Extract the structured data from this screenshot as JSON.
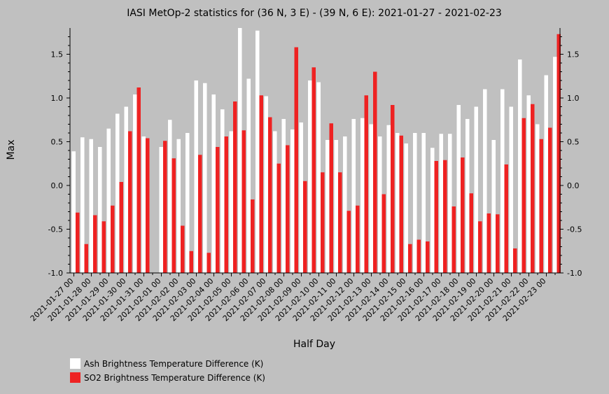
{
  "chart_data": {
    "type": "bar",
    "title": "IASI MetOp-2 statistics for (36 N, 3 E) - (39 N, 6 E): 2021-01-27 - 2021-02-23",
    "xlabel": "Half Day",
    "ylabel": "Max",
    "ylim": [
      -1.0,
      1.8
    ],
    "yticks": [
      "-1.0",
      "-0.5",
      "0.0",
      "0.5",
      "1.0",
      "1.5"
    ],
    "ytick_values": [
      -1.0,
      -0.5,
      0.0,
      0.5,
      1.0,
      1.5
    ],
    "grid": false,
    "legend_placement": "bottom-left",
    "xtick_labels": [
      "2021-01-27 00",
      "2021-01-28 00",
      "2021-01-29 00",
      "2021-01-30 00",
      "2021-01-31 00",
      "2021-02-01 00",
      "2021-02-02 00",
      "2021-02-03 00",
      "2021-02-04 00",
      "2021-02-05 00",
      "2021-02-06 00",
      "2021-02-07 00",
      "2021-02-08 00",
      "2021-02-09 00",
      "2021-02-10 00",
      "2021-02-11 00",
      "2021-02-12 00",
      "2021-02-13 00",
      "2021-02-14 00",
      "2021-02-15 00",
      "2021-02-16 00",
      "2021-02-17 00",
      "2021-02-18 00",
      "2021-02-19 00",
      "2021-02-20 00",
      "2021-02-21 00",
      "2021-02-22 00",
      "2021-02-23 00"
    ],
    "series": [
      {
        "name": "Ash Brightness Temperature Difference (K)",
        "color": "#ffffff",
        "values": [
          0.39,
          0.55,
          0.53,
          0.44,
          0.65,
          0.82,
          0.9,
          1.04,
          0.56,
          null,
          0.44,
          0.75,
          0.53,
          0.6,
          1.2,
          1.17,
          1.04,
          0.87,
          0.62,
          1.83,
          1.22,
          1.77,
          1.02,
          0.62,
          0.76,
          0.64,
          0.72,
          1.2,
          1.18,
          0.52,
          0.52,
          0.56,
          0.76,
          0.77,
          0.7,
          0.56,
          0.69,
          0.6,
          0.48,
          0.6,
          0.6,
          0.43,
          0.59,
          0.59,
          0.92,
          0.76,
          0.9,
          1.1,
          0.52,
          1.1,
          0.9,
          1.44,
          1.03,
          0.7,
          1.26,
          1.47
        ]
      },
      {
        "name": "SO2 Brightness Temperature Difference (K)",
        "color": "#ee2222",
        "values": [
          -0.31,
          -0.67,
          -0.34,
          -0.41,
          -0.23,
          0.04,
          0.62,
          1.12,
          0.54,
          null,
          0.51,
          0.31,
          -0.46,
          -0.75,
          0.35,
          -0.77,
          0.44,
          0.56,
          0.96,
          0.63,
          -0.16,
          1.03,
          0.78,
          0.25,
          0.46,
          1.58,
          0.05,
          1.35,
          0.15,
          0.71,
          0.15,
          -0.29,
          -0.23,
          1.03,
          1.3,
          -0.1,
          0.92,
          0.57,
          -0.67,
          -0.62,
          -0.64,
          0.28,
          0.29,
          -0.24,
          0.32,
          -0.09,
          -0.41,
          -0.32,
          -0.33,
          0.24,
          -0.72,
          0.77,
          0.93,
          0.53,
          0.66,
          1.73
        ]
      }
    ]
  }
}
